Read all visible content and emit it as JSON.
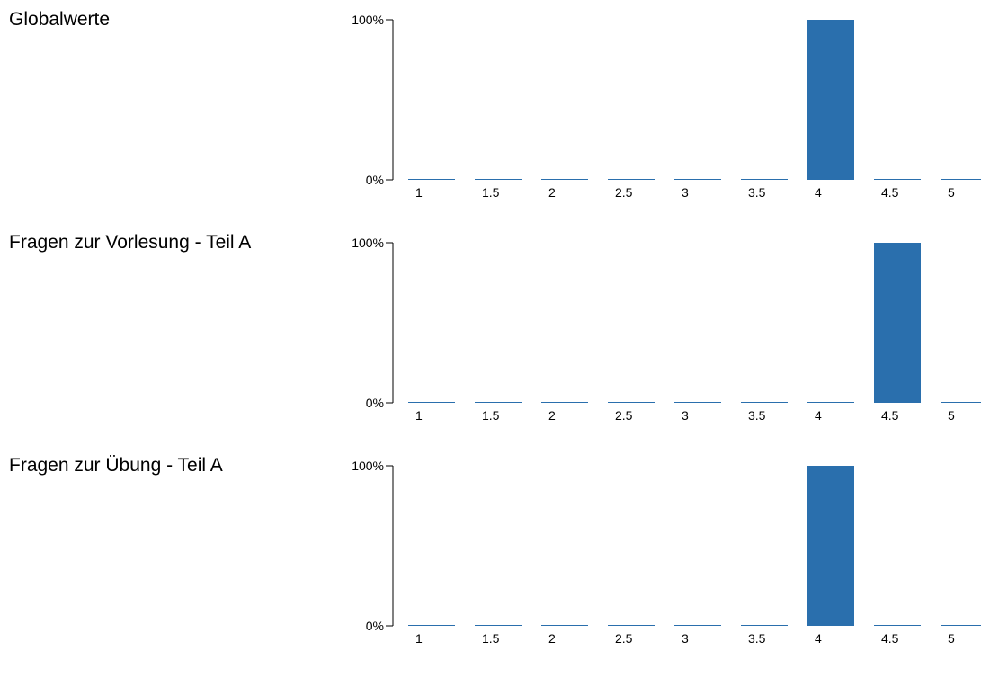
{
  "colors": {
    "bar": "#2a6fad",
    "axis": "#000000"
  },
  "chart_data": [
    {
      "type": "bar",
      "title": "Globalwerte",
      "categories": [
        "1",
        "1.5",
        "2",
        "2.5",
        "3",
        "3.5",
        "4",
        "4.5",
        "5"
      ],
      "values": [
        0,
        0,
        0,
        0,
        0,
        0,
        100,
        0,
        0
      ],
      "y_ticks": [
        "100%",
        "0%"
      ],
      "ylim": [
        0,
        100
      ]
    },
    {
      "type": "bar",
      "title": "Fragen zur Vorlesung - Teil A",
      "categories": [
        "1",
        "1.5",
        "2",
        "2.5",
        "3",
        "3.5",
        "4",
        "4.5",
        "5"
      ],
      "values": [
        0,
        0,
        0,
        0,
        0,
        0,
        0,
        100,
        0
      ],
      "y_ticks": [
        "100%",
        "0%"
      ],
      "ylim": [
        0,
        100
      ]
    },
    {
      "type": "bar",
      "title": "Fragen zur Übung - Teil A",
      "categories": [
        "1",
        "1.5",
        "2",
        "2.5",
        "3",
        "3.5",
        "4",
        "4.5",
        "5"
      ],
      "values": [
        0,
        0,
        0,
        0,
        0,
        0,
        100,
        0,
        0
      ],
      "y_ticks": [
        "100%",
        "0%"
      ],
      "ylim": [
        0,
        100
      ]
    }
  ]
}
